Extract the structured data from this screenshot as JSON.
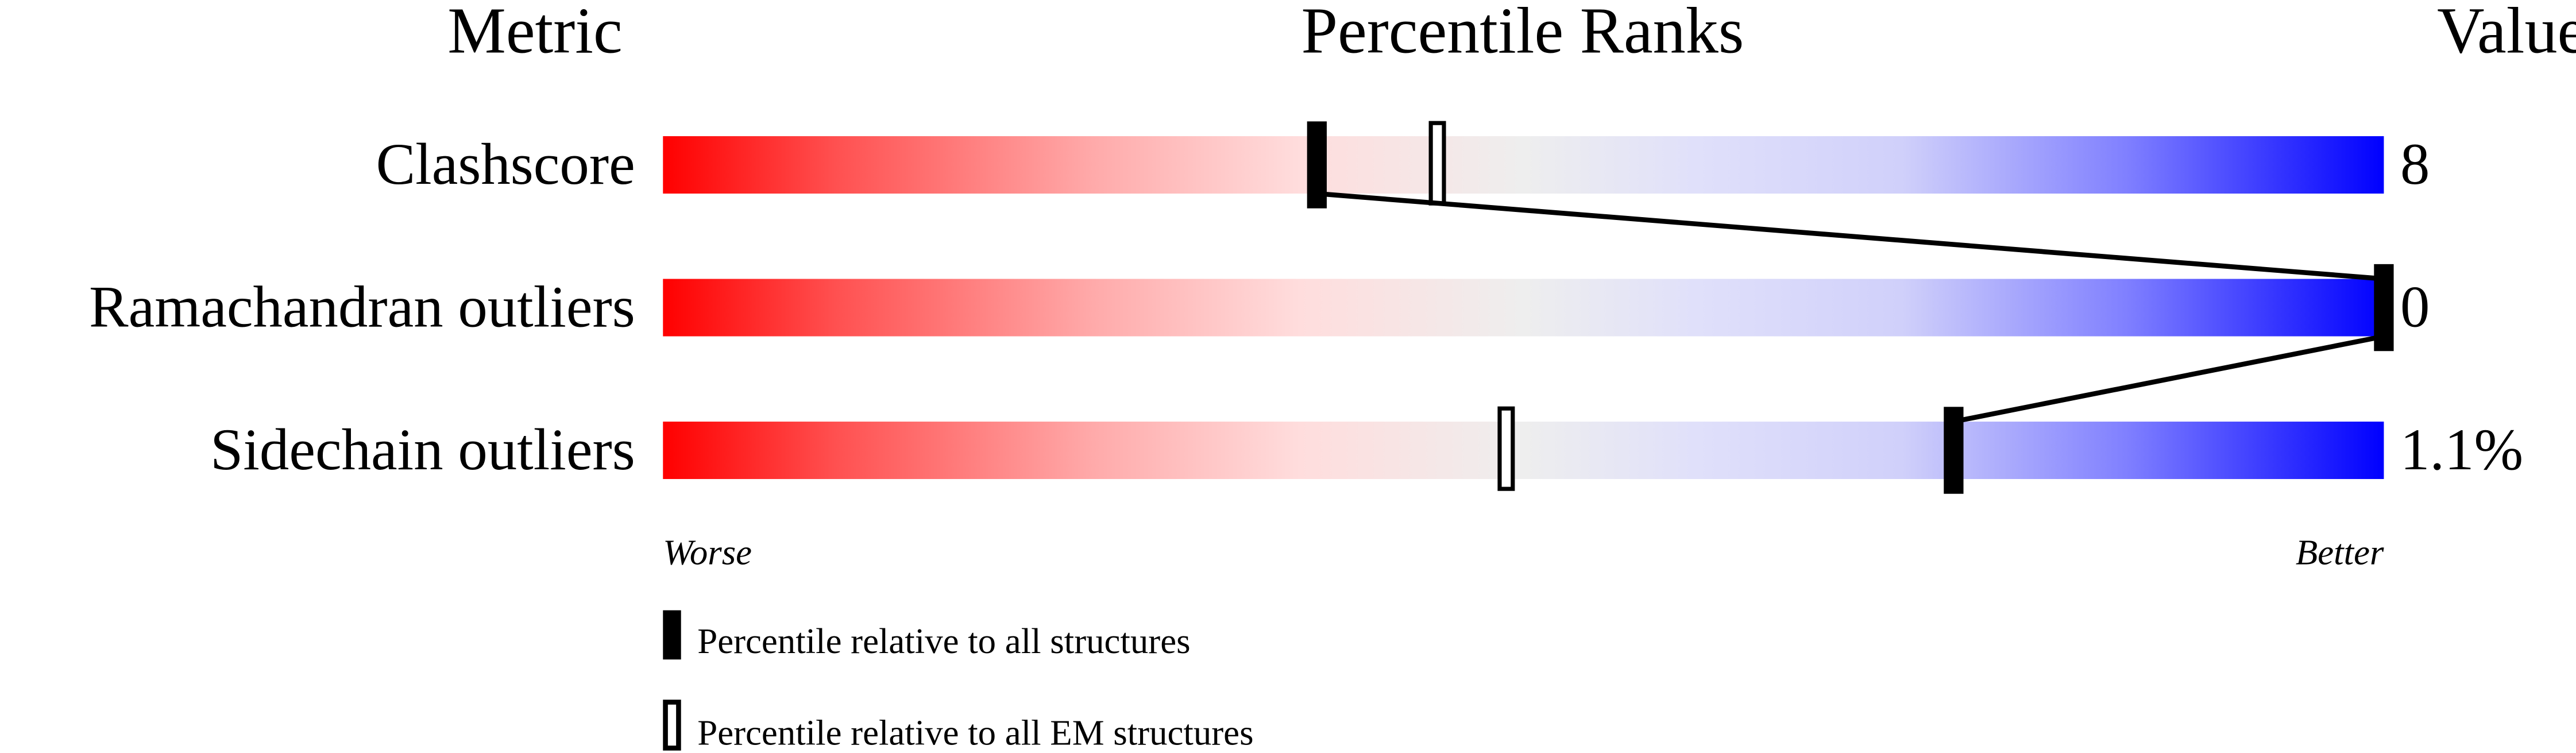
{
  "chart_data": {
    "type": "percentile-slider",
    "headers": {
      "metric": "Metric",
      "ranks": "Percentile Ranks",
      "value": "Value"
    },
    "xlim": [
      0,
      100
    ],
    "rows": [
      {
        "metric": "Clashscore",
        "value": "8",
        "percentile_all": 38,
        "percentile_em": 45
      },
      {
        "metric": "Ramachandran outliers",
        "value": "0",
        "percentile_all": 100,
        "percentile_em": null
      },
      {
        "metric": "Sidechain outliers",
        "value": "1.1%",
        "percentile_all": 75,
        "percentile_em": 49
      }
    ],
    "axis": {
      "left": "Worse",
      "right": "Better"
    },
    "legend": [
      {
        "marker": "filled",
        "label": "Percentile relative to all structures"
      },
      {
        "marker": "open",
        "label": "Percentile relative to all EM structures"
      }
    ],
    "colors": {
      "worse": "#ff0000",
      "middle": "#eeeeee",
      "better": "#0000ff"
    }
  }
}
